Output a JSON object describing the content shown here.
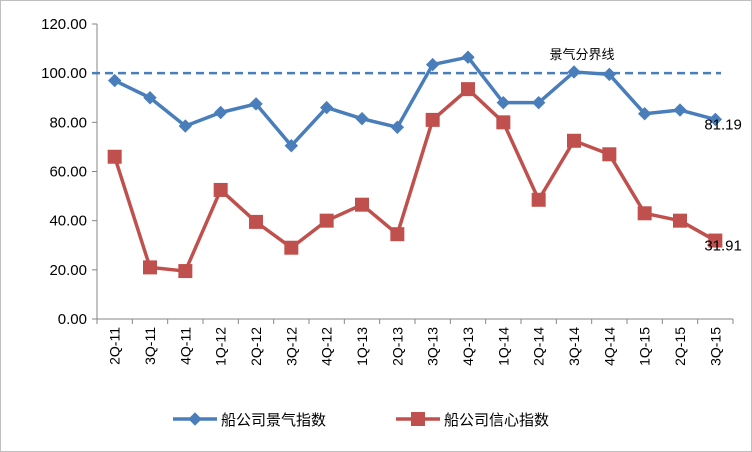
{
  "chart_data": {
    "type": "line",
    "title": "",
    "xlabel": "",
    "ylabel": "",
    "ylim": [
      0,
      120
    ],
    "yticks": [
      "0.00",
      "20.00",
      "40.00",
      "60.00",
      "80.00",
      "100.00",
      "120.00"
    ],
    "categories": [
      "2Q-11",
      "3Q-11",
      "4Q-11",
      "1Q-12",
      "2Q-12",
      "3Q-12",
      "4Q-12",
      "1Q-13",
      "2Q-13",
      "3Q-13",
      "4Q-13",
      "1Q-14",
      "2Q-14",
      "3Q-14",
      "4Q-14",
      "1Q-15",
      "2Q-15",
      "3Q-15"
    ],
    "series": [
      {
        "name": "船公司景气指数",
        "color": "#4a7ebb",
        "marker": "diamond",
        "values": [
          97,
          90,
          78.5,
          84,
          87.5,
          70.5,
          86,
          81.5,
          78,
          103.5,
          106.5,
          88,
          88,
          100.5,
          99.5,
          83.5,
          85,
          81.19
        ]
      },
      {
        "name": "船公司信心指数",
        "color": "#c0504d",
        "marker": "square",
        "values": [
          66,
          21,
          19.5,
          52.5,
          39.5,
          29,
          40,
          46.5,
          34.5,
          81,
          93.5,
          80,
          48.5,
          72.5,
          67,
          43,
          40,
          31.91
        ]
      }
    ],
    "data_labels": [
      "81.19",
      "31.91"
    ],
    "reference_line": {
      "value": 100,
      "label": "景气分界线",
      "color": "#4a7ebb",
      "style": "dashed"
    },
    "grid": false,
    "legend": "bottom"
  }
}
